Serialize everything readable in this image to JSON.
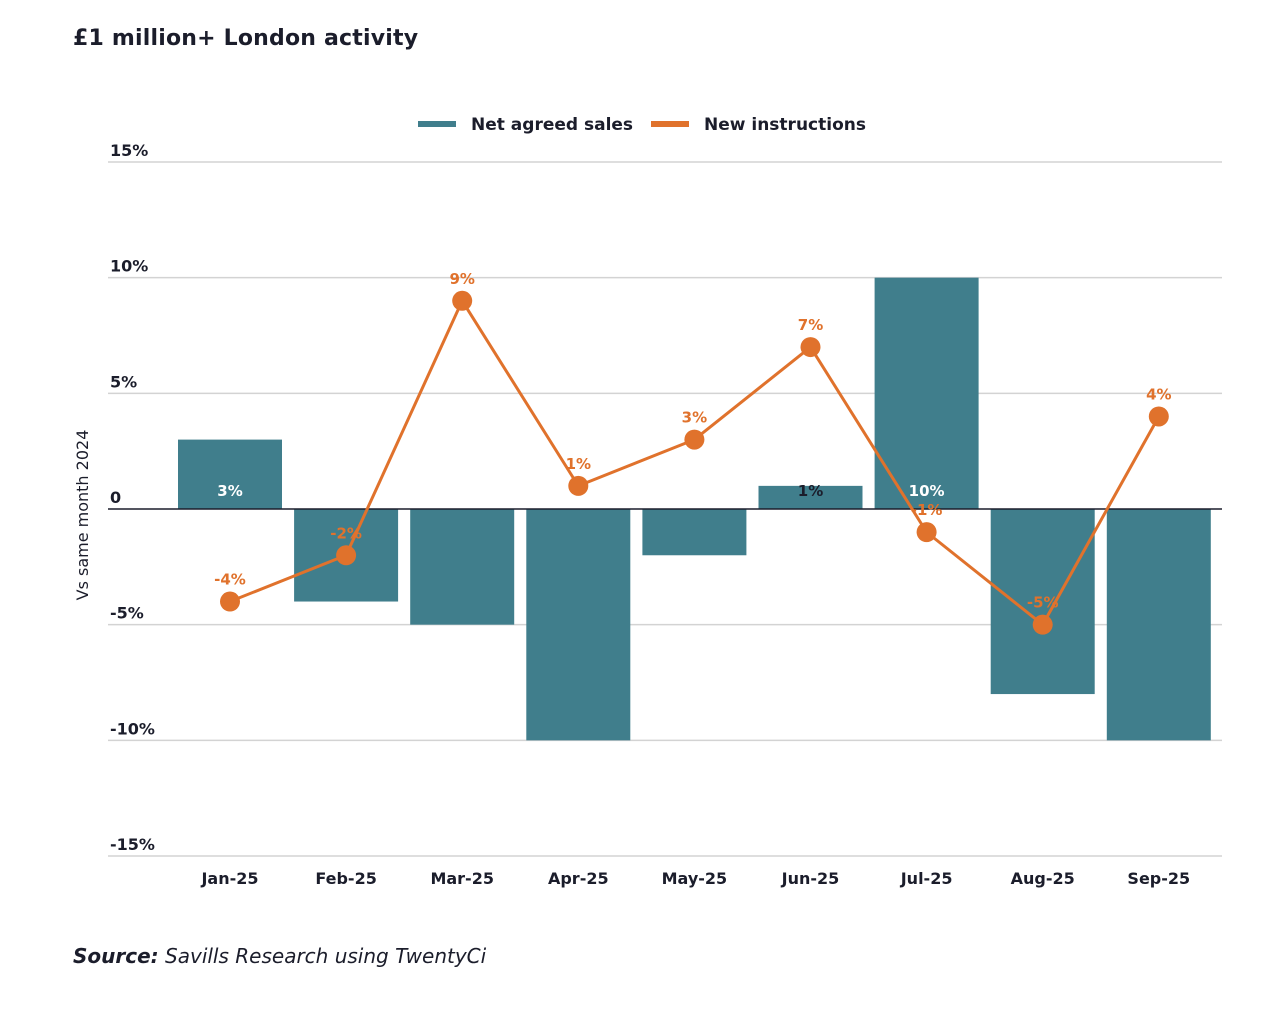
{
  "source": {
    "prefix": "Source:",
    "text": " Savills Research using TwentyCi"
  },
  "colors": {
    "bar": "#407E8C",
    "line": "#E0722C",
    "grid": "#d3d3d3",
    "zero": "#1b1d2b",
    "text": "#1b1d2b"
  },
  "chart_data": {
    "type": "bar",
    "title": "£1 million+ London activity",
    "xlabel": "",
    "ylabel": "Vs same month 2024",
    "ylim": [
      -15,
      15
    ],
    "yticks": [
      15,
      10,
      5,
      0,
      -5,
      -10,
      -15
    ],
    "ytick_labels": [
      "15%",
      "10%",
      "5%",
      "0",
      "-5%",
      "-10%",
      "-15%"
    ],
    "grid": true,
    "legend_position": "top-center",
    "categories": [
      "Jan-25",
      "Feb-25",
      "Mar-25",
      "Apr-25",
      "May-25",
      "Jun-25",
      "Jul-25",
      "Aug-25",
      "Sep-25"
    ],
    "series": [
      {
        "name": "Net agreed sales",
        "type": "bar",
        "unit": "%",
        "values": [
          3,
          -4,
          -5,
          -10,
          -2,
          1,
          10,
          -8,
          -10
        ],
        "labels": [
          "3%",
          "-4%",
          "-5%",
          "-10%",
          "-2%",
          "1%",
          "10%",
          "-8%",
          "-10%"
        ]
      },
      {
        "name": "New instructions",
        "type": "line",
        "unit": "%",
        "values": [
          -4,
          -2,
          9,
          1,
          3,
          7,
          -1,
          -5,
          4
        ],
        "labels": [
          "-4%",
          "-2%",
          "9%",
          "1%",
          "3%",
          "7%",
          "-1%",
          "-5%",
          "4%"
        ]
      }
    ]
  }
}
